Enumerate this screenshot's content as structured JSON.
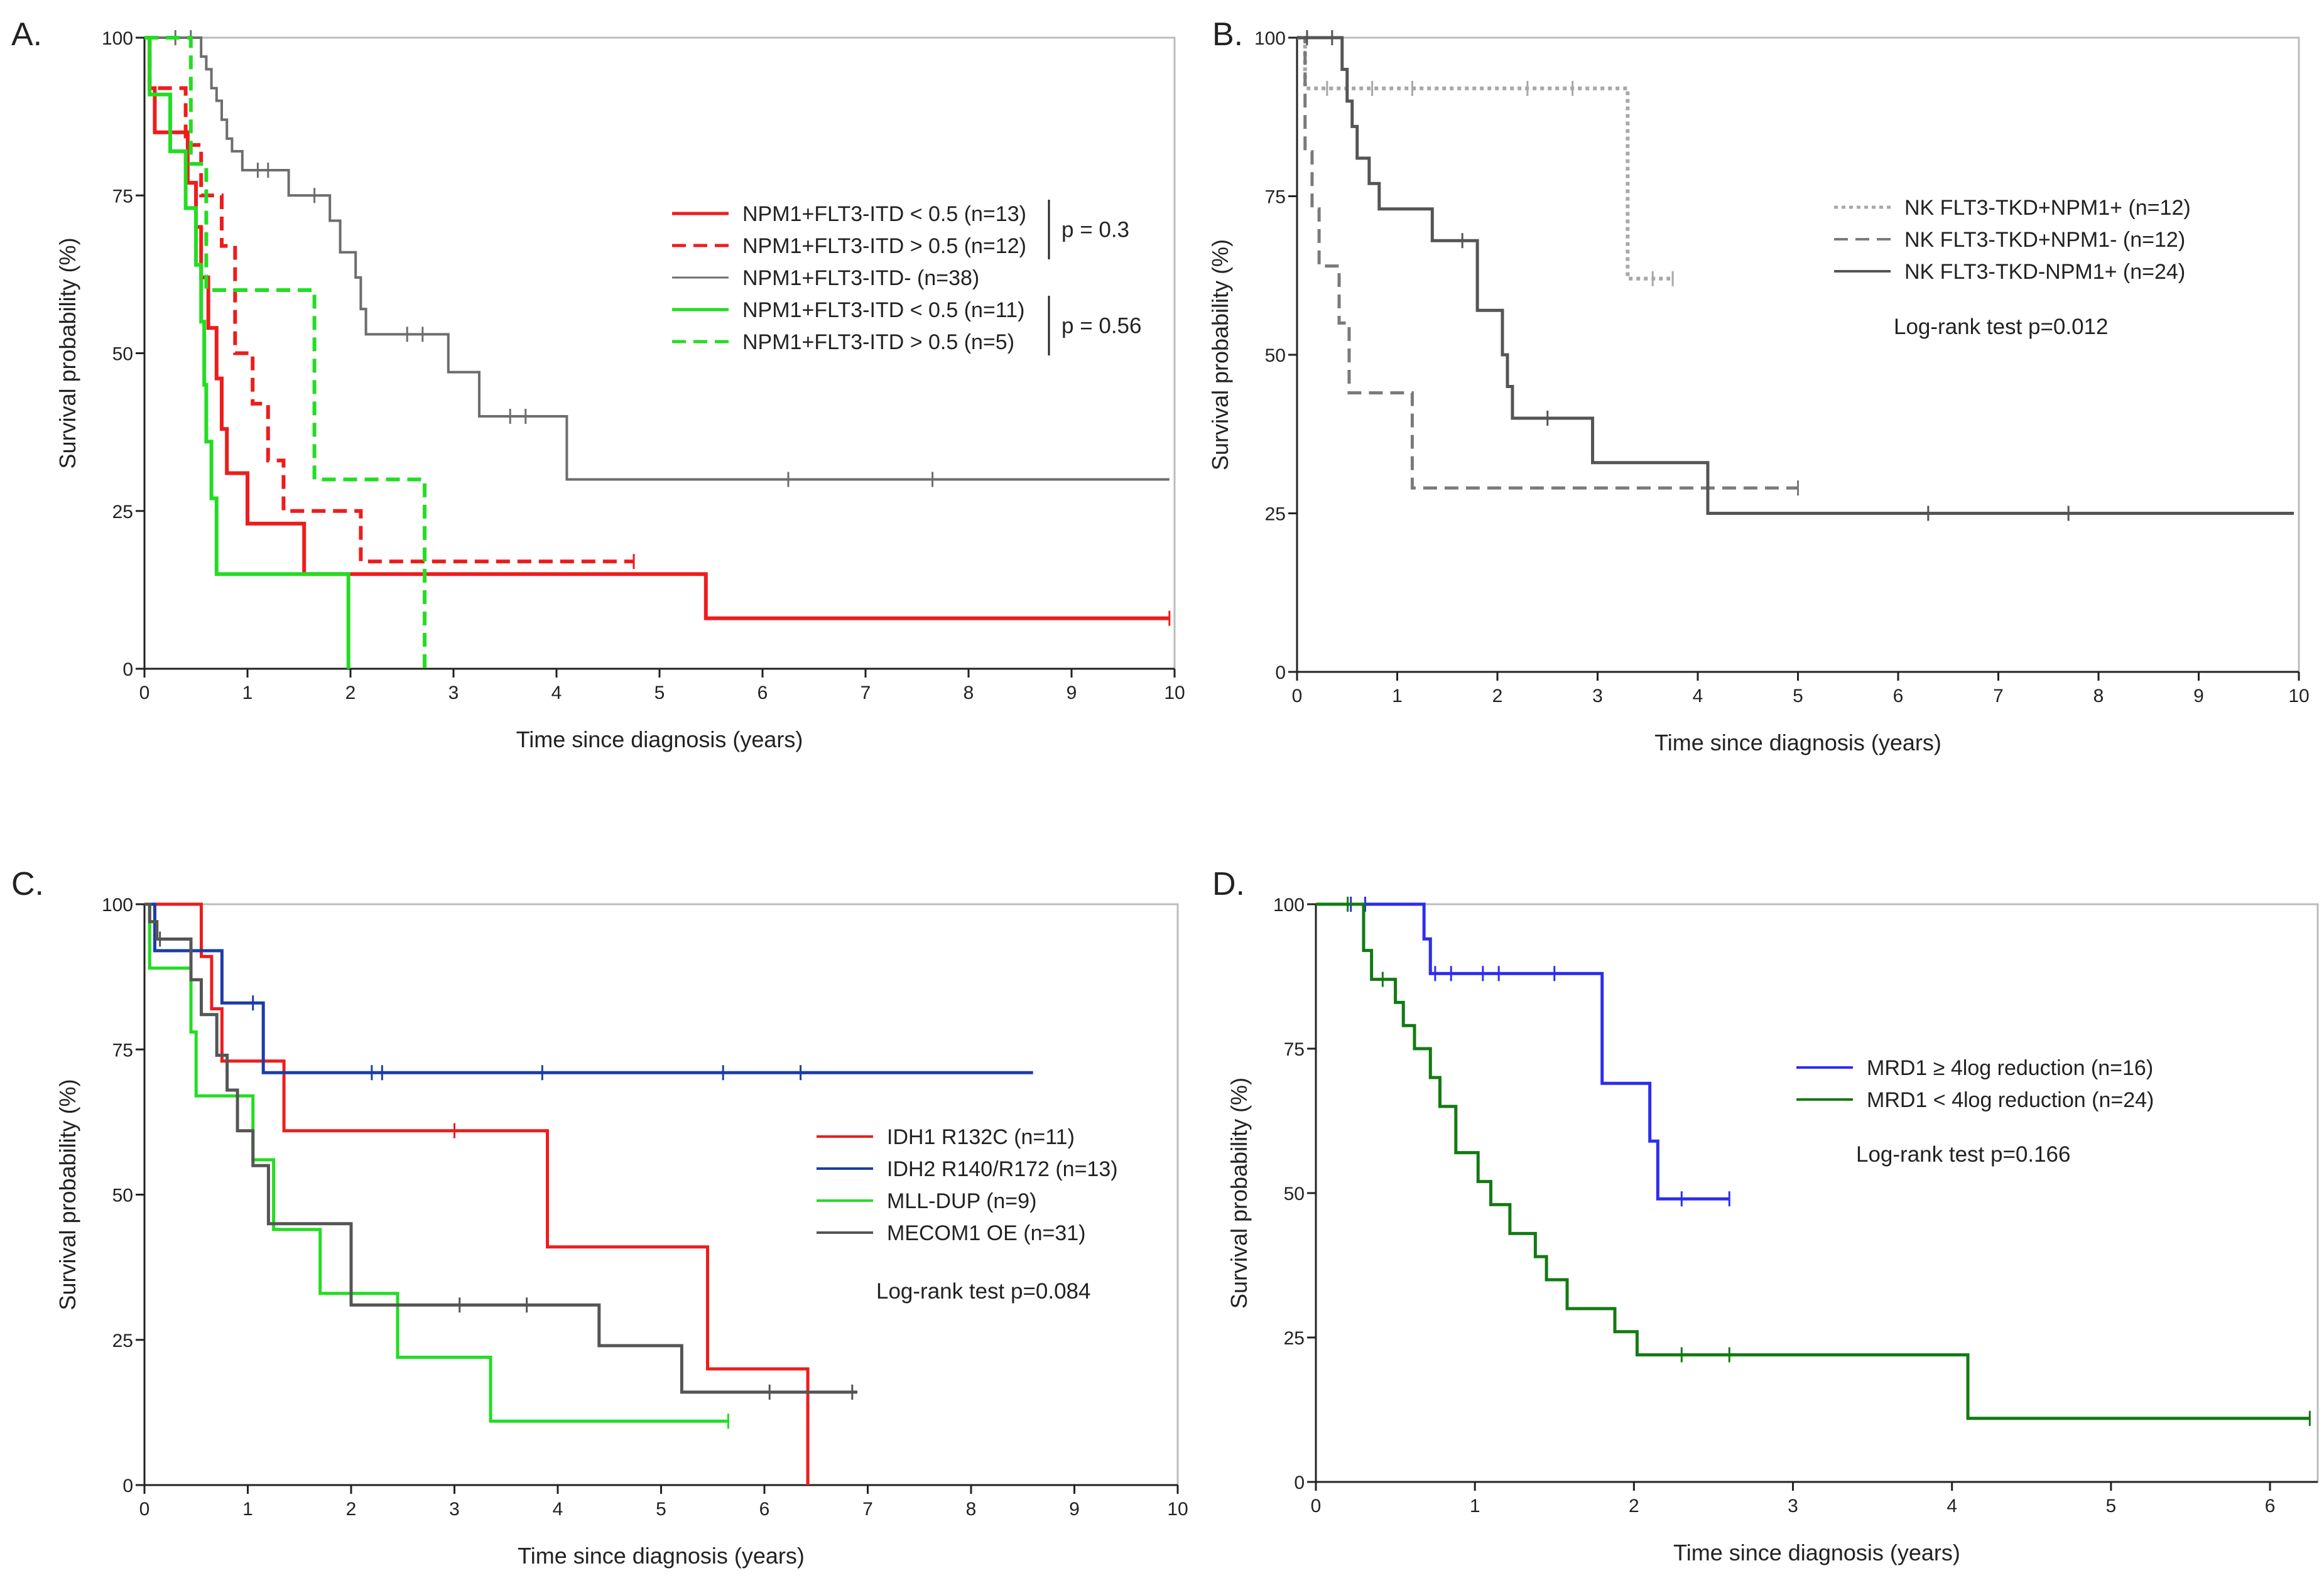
{
  "figure": {
    "panel_labels": [
      "A.",
      "B.",
      "C.",
      "D."
    ]
  },
  "chart_data": [
    {
      "type": "line",
      "subtype": "kaplan-meier",
      "panel": "A.",
      "title": "",
      "xlabel": "Time since diagnosis (years)",
      "ylabel": "Survival probability (%)",
      "xlim": [
        0,
        10
      ],
      "ylim": [
        0,
        100
      ],
      "xticks": [
        0,
        1,
        2,
        3,
        4,
        5,
        6,
        7,
        8,
        9,
        10
      ],
      "yticks": [
        0,
        25,
        50,
        75,
        100
      ],
      "legend_position": "top-right",
      "series": [
        {
          "name": "NPM1+FLT3-ITD < 0.5 (n=13)",
          "color": "#ee1c1c",
          "dash": "solid",
          "width": 6,
          "steps": [
            [
              0,
              100
            ],
            [
              0.05,
              92
            ],
            [
              0.1,
              85
            ],
            [
              0.42,
              77
            ],
            [
              0.5,
              70
            ],
            [
              0.55,
              62
            ],
            [
              0.62,
              54
            ],
            [
              0.7,
              46
            ],
            [
              0.75,
              38
            ],
            [
              0.8,
              31
            ],
            [
              1.0,
              23
            ],
            [
              1.55,
              15
            ],
            [
              5.45,
              8
            ],
            [
              9.95,
              8
            ]
          ],
          "censors": [
            [
              9.95,
              8
            ]
          ]
        },
        {
          "name": "NPM1+FLT3-ITD > 0.5 (n=12)",
          "color": "#ee1c1c",
          "dash": "dashed",
          "width": 6,
          "steps": [
            [
              0,
              100
            ],
            [
              0.05,
              92
            ],
            [
              0.4,
              83
            ],
            [
              0.55,
              75
            ],
            [
              0.75,
              67
            ],
            [
              0.88,
              50
            ],
            [
              1.05,
              42
            ],
            [
              1.2,
              33
            ],
            [
              1.35,
              25
            ],
            [
              2.1,
              17
            ],
            [
              4.75,
              17
            ]
          ],
          "censors": [
            [
              4.75,
              17
            ]
          ]
        },
        {
          "name": "NPM1+FLT3-ITD- (n=38)",
          "color": "#6d6d6d",
          "dash": "solid",
          "width": 4,
          "steps": [
            [
              0,
              100
            ],
            [
              0.55,
              97
            ],
            [
              0.6,
              95
            ],
            [
              0.65,
              92
            ],
            [
              0.7,
              90
            ],
            [
              0.75,
              87
            ],
            [
              0.8,
              84
            ],
            [
              0.85,
              82
            ],
            [
              0.95,
              79
            ],
            [
              1.4,
              75
            ],
            [
              1.8,
              71
            ],
            [
              1.9,
              66
            ],
            [
              2.05,
              62
            ],
            [
              2.1,
              57
            ],
            [
              2.15,
              53
            ],
            [
              2.95,
              47
            ],
            [
              3.25,
              40
            ],
            [
              4.1,
              30
            ],
            [
              9.95,
              30
            ]
          ],
          "censors": [
            [
              0.3,
              100
            ],
            [
              0.45,
              100
            ],
            [
              1.1,
              79
            ],
            [
              1.2,
              79
            ],
            [
              1.65,
              75
            ],
            [
              2.55,
              53
            ],
            [
              2.7,
              53
            ],
            [
              3.55,
              40
            ],
            [
              3.7,
              40
            ],
            [
              6.25,
              30
            ],
            [
              7.65,
              30
            ]
          ]
        },
        {
          "name": "NPM1+FLT3-ITD < 0.5 (n=11)",
          "color": "#22dd22",
          "dash": "solid",
          "width": 6,
          "steps": [
            [
              0,
              100
            ],
            [
              0.05,
              91
            ],
            [
              0.25,
              82
            ],
            [
              0.4,
              73
            ],
            [
              0.5,
              64
            ],
            [
              0.55,
              55
            ],
            [
              0.58,
              45
            ],
            [
              0.6,
              36
            ],
            [
              0.65,
              27
            ],
            [
              0.7,
              15
            ],
            [
              1.95,
              15
            ],
            [
              1.98,
              0
            ]
          ],
          "censors": []
        },
        {
          "name": "NPM1+FLT3-ITD > 0.5 (n=5)",
          "color": "#22dd22",
          "dash": "dashed",
          "width": 6,
          "steps": [
            [
              0,
              100
            ],
            [
              0.45,
              80
            ],
            [
              0.6,
              60
            ],
            [
              1.65,
              30
            ],
            [
              2.7,
              30
            ],
            [
              2.72,
              0
            ]
          ],
          "censors": []
        }
      ],
      "annotations": [
        {
          "text": "p = 0.3",
          "group": [
            0,
            1
          ]
        },
        {
          "text": "p = 0.56",
          "group": [
            3,
            4
          ]
        }
      ]
    },
    {
      "type": "line",
      "subtype": "kaplan-meier",
      "panel": "B.",
      "title": "",
      "xlabel": "Time since diagnosis (years)",
      "ylabel": "Survival probability (%)",
      "xlim": [
        0,
        10
      ],
      "ylim": [
        0,
        100
      ],
      "xticks": [
        0,
        1,
        2,
        3,
        4,
        5,
        6,
        7,
        8,
        9,
        10
      ],
      "yticks": [
        0,
        25,
        50,
        75,
        100
      ],
      "legend_position": "top-right",
      "series": [
        {
          "name": "NK FLT3-TKD+NPM1+ (n=12)",
          "color": "#a8a8a8",
          "dash": "dotted",
          "width": 6,
          "steps": [
            [
              0,
              100
            ],
            [
              0.08,
              92
            ],
            [
              3.3,
              62
            ],
            [
              3.75,
              62
            ]
          ],
          "censors": [
            [
              0.3,
              92
            ],
            [
              0.5,
              92
            ],
            [
              0.75,
              92
            ],
            [
              1.15,
              92
            ],
            [
              2.3,
              92
            ],
            [
              2.75,
              92
            ],
            [
              3.55,
              62
            ],
            [
              3.75,
              62
            ]
          ]
        },
        {
          "name": "NK FLT3-TKD+NPM1- (n=12)",
          "color": "#7a7a7a",
          "dash": "dashed",
          "width": 5,
          "steps": [
            [
              0,
              100
            ],
            [
              0.08,
              82
            ],
            [
              0.15,
              73
            ],
            [
              0.22,
              64
            ],
            [
              0.42,
              55
            ],
            [
              0.52,
              44
            ],
            [
              1.15,
              29
            ],
            [
              5.0,
              29
            ]
          ],
          "censors": [
            [
              5.0,
              29
            ]
          ]
        },
        {
          "name": "NK FLT3-TKD-NPM1+ (n=24)",
          "color": "#555555",
          "dash": "solid",
          "width": 5,
          "steps": [
            [
              0,
              100
            ],
            [
              0.45,
              95
            ],
            [
              0.5,
              90
            ],
            [
              0.55,
              86
            ],
            [
              0.6,
              81
            ],
            [
              0.72,
              77
            ],
            [
              0.82,
              73
            ],
            [
              1.35,
              68
            ],
            [
              1.8,
              57
            ],
            [
              2.05,
              50
            ],
            [
              2.1,
              45
            ],
            [
              2.15,
              40
            ],
            [
              2.95,
              33
            ],
            [
              4.1,
              25
            ],
            [
              9.95,
              25
            ]
          ],
          "censors": [
            [
              0.1,
              100
            ],
            [
              0.35,
              100
            ],
            [
              1.65,
              68
            ],
            [
              2.5,
              40
            ],
            [
              6.3,
              25
            ],
            [
              7.7,
              25
            ]
          ]
        }
      ],
      "annotations": [
        {
          "text": "Log-rank test p=0.012"
        }
      ]
    },
    {
      "type": "line",
      "subtype": "kaplan-meier",
      "panel": "C.",
      "title": "",
      "xlabel": "Time since diagnosis (years)",
      "ylabel": "Survival probability (%)",
      "xlim": [
        0,
        10
      ],
      "ylim": [
        0,
        100
      ],
      "xticks": [
        0,
        1,
        2,
        3,
        4,
        5,
        6,
        7,
        8,
        9,
        10
      ],
      "yticks": [
        0,
        25,
        50,
        75,
        100
      ],
      "legend_position": "right",
      "series": [
        {
          "name": "IDH1 R132C (n=11)",
          "color": "#ee1c1c",
          "dash": "solid",
          "width": 5,
          "steps": [
            [
              0,
              100
            ],
            [
              0.55,
              91
            ],
            [
              0.65,
              82
            ],
            [
              0.75,
              73
            ],
            [
              1.35,
              61
            ],
            [
              3.9,
              41
            ],
            [
              5.45,
              20
            ],
            [
              6.4,
              20
            ],
            [
              6.42,
              0
            ]
          ],
          "censors": [
            [
              3.0,
              61
            ]
          ]
        },
        {
          "name": "IDH2 R140/R172 (n=13)",
          "color": "#1b3da8",
          "dash": "solid",
          "width": 5,
          "steps": [
            [
              0,
              100
            ],
            [
              0.1,
              92
            ],
            [
              0.75,
              83
            ],
            [
              1.15,
              71
            ],
            [
              8.6,
              71
            ]
          ],
          "censors": [
            [
              1.05,
              83
            ],
            [
              2.2,
              71
            ],
            [
              2.3,
              71
            ],
            [
              3.85,
              71
            ],
            [
              5.6,
              71
            ],
            [
              6.35,
              71
            ]
          ]
        },
        {
          "name": "MLL-DUP (n=9)",
          "color": "#22dd22",
          "dash": "solid",
          "width": 5,
          "steps": [
            [
              0,
              100
            ],
            [
              0.05,
              89
            ],
            [
              0.45,
              78
            ],
            [
              0.5,
              67
            ],
            [
              1.05,
              56
            ],
            [
              1.25,
              44
            ],
            [
              1.7,
              33
            ],
            [
              2.45,
              22
            ],
            [
              3.35,
              11
            ],
            [
              5.65,
              11
            ]
          ],
          "censors": [
            [
              5.65,
              11
            ]
          ]
        },
        {
          "name": "MECOM1 OE (n=31)",
          "color": "#555555",
          "dash": "solid",
          "width": 5,
          "steps": [
            [
              0,
              100
            ],
            [
              0.05,
              97
            ],
            [
              0.12,
              94
            ],
            [
              0.45,
              87
            ],
            [
              0.55,
              81
            ],
            [
              0.7,
              74
            ],
            [
              0.8,
              68
            ],
            [
              0.9,
              61
            ],
            [
              1.05,
              55
            ],
            [
              1.2,
              45
            ],
            [
              2.0,
              31
            ],
            [
              4.4,
              24
            ],
            [
              5.2,
              16
            ],
            [
              6.9,
              16
            ]
          ],
          "censors": [
            [
              0.15,
              94
            ],
            [
              3.05,
              31
            ],
            [
              3.7,
              31
            ],
            [
              6.05,
              16
            ],
            [
              6.85,
              16
            ]
          ]
        }
      ],
      "annotations": [
        {
          "text": "Log-rank test p=0.084"
        }
      ]
    },
    {
      "type": "line",
      "subtype": "kaplan-meier",
      "panel": "D.",
      "title": "",
      "xlabel": "Time since diagnosis (years)",
      "ylabel": "Survival probability (%)",
      "xlim": [
        0,
        6.3
      ],
      "ylim": [
        0,
        100
      ],
      "xticks": [
        0,
        1,
        2,
        3,
        4,
        5,
        6
      ],
      "yticks": [
        0,
        25,
        50,
        75,
        100
      ],
      "legend_position": "right",
      "series": [
        {
          "name": "MRD1 ≥ 4log reduction (n=16)",
          "color": "#2d2df0",
          "dash": "solid",
          "width": 5,
          "steps": [
            [
              0,
              100
            ],
            [
              0.68,
              94
            ],
            [
              0.72,
              88
            ],
            [
              1.8,
              69
            ],
            [
              2.1,
              59
            ],
            [
              2.15,
              49
            ],
            [
              2.6,
              49
            ]
          ],
          "censors": [
            [
              0.22,
              100
            ],
            [
              0.31,
              100
            ],
            [
              0.75,
              88
            ],
            [
              0.85,
              88
            ],
            [
              1.05,
              88
            ],
            [
              1.15,
              88
            ],
            [
              1.5,
              88
            ],
            [
              2.3,
              49
            ],
            [
              2.6,
              49
            ]
          ]
        },
        {
          "name": "MRD1 < 4log reduction (n=24)",
          "color": "#137a13",
          "dash": "solid",
          "width": 5,
          "steps": [
            [
              0,
              100
            ],
            [
              0.3,
              92
            ],
            [
              0.35,
              87
            ],
            [
              0.5,
              83
            ],
            [
              0.55,
              79
            ],
            [
              0.62,
              75
            ],
            [
              0.72,
              70
            ],
            [
              0.78,
              65
            ],
            [
              0.88,
              57
            ],
            [
              1.02,
              52
            ],
            [
              1.1,
              48
            ],
            [
              1.22,
              43
            ],
            [
              1.38,
              39
            ],
            [
              1.45,
              35
            ],
            [
              1.58,
              30
            ],
            [
              1.88,
              26
            ],
            [
              2.02,
              22
            ],
            [
              4.1,
              11
            ],
            [
              6.25,
              11
            ]
          ],
          "censors": [
            [
              0.2,
              100
            ],
            [
              0.42,
              87
            ],
            [
              2.3,
              22
            ],
            [
              2.6,
              22
            ],
            [
              6.25,
              11
            ]
          ]
        }
      ],
      "annotations": [
        {
          "text": "Log-rank test p=0.166"
        }
      ]
    }
  ]
}
